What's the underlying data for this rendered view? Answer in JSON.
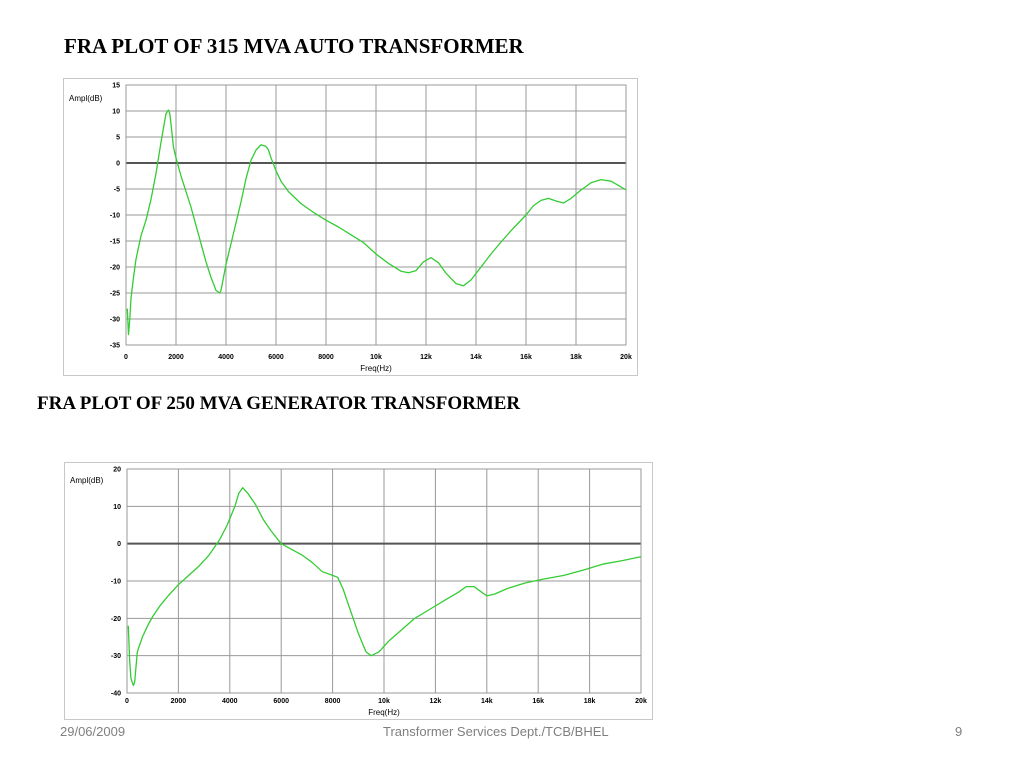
{
  "slide": {
    "title_1": "FRA PLOT OF 315 MVA AUTO TRANSFORMER",
    "title_2": "FRA PLOT OF 250 MVA GENERATOR TRANSFORMER",
    "footer_date": "29/06/2009",
    "footer_center": "Transformer Services Dept./TCB/BHEL",
    "footer_page": "9"
  },
  "colors": {
    "trace": "#33cc33",
    "grid": "#999999",
    "zero_line": "#555555",
    "text": "#000000"
  },
  "chart_data": [
    {
      "type": "line",
      "title": "FRA PLOT OF 315 MVA AUTO TRANSFORMER",
      "xlabel": "Freq(Hz)",
      "ylabel": "Ampl(dB)",
      "xlim": [
        0,
        20000
      ],
      "ylim": [
        -35,
        15
      ],
      "x_ticks": [
        0,
        2000,
        4000,
        6000,
        8000,
        10000,
        12000,
        14000,
        16000,
        18000,
        20000
      ],
      "x_tick_labels": [
        "0",
        "2000",
        "4000",
        "6000",
        "8000",
        "10k",
        "12k",
        "14k",
        "16k",
        "18k",
        "20k"
      ],
      "y_ticks": [
        15,
        10,
        5,
        0,
        -5,
        -10,
        -15,
        -20,
        -25,
        -30,
        -35
      ],
      "y_tick_labels": [
        "15",
        "10",
        "5",
        "0",
        "-5",
        "-10",
        "-15",
        "-20",
        "-25",
        "-30",
        "-35"
      ],
      "grid": true,
      "series": [
        {
          "x": [
            50,
            100,
            150,
            200,
            300,
            400,
            600,
            800,
            1000,
            1200,
            1400,
            1600,
            1700,
            1750,
            1800,
            1900,
            2000,
            2200,
            2400,
            2600,
            2800,
            3000,
            3200,
            3400,
            3600,
            3750,
            3800,
            3900,
            4000,
            4200,
            4400,
            4600,
            4800,
            5000,
            5200,
            5400,
            5600,
            5700,
            5800,
            6000,
            6200,
            6500,
            7000,
            7500,
            8000,
            8500,
            9000,
            9500,
            10000,
            10500,
            11000,
            11300,
            11600,
            11900,
            12200,
            12500,
            12800,
            13200,
            13500,
            13800,
            14200,
            14600,
            15000,
            15500,
            16000,
            16300,
            16600,
            16900,
            17200,
            17500,
            17800,
            18200,
            18600,
            19000,
            19400,
            19700,
            20000
          ],
          "y": [
            -28,
            -33,
            -30,
            -26,
            -22,
            -18.5,
            -14,
            -11,
            -7,
            -2,
            4,
            9.5,
            10.2,
            9.5,
            7.5,
            3,
            1,
            -2.5,
            -5.5,
            -8.5,
            -12,
            -15.5,
            -19,
            -22,
            -24.5,
            -25,
            -24.5,
            -22,
            -19.5,
            -15.5,
            -11.5,
            -7.5,
            -3,
            0.5,
            2.5,
            3.5,
            3.2,
            2.5,
            1,
            -1.5,
            -3.5,
            -5.5,
            -7.8,
            -9.5,
            -11,
            -12.3,
            -13.8,
            -15.3,
            -17.5,
            -19.3,
            -20.8,
            -21.1,
            -20.7,
            -19,
            -18.2,
            -19.2,
            -21.2,
            -23.2,
            -23.6,
            -22.5,
            -20,
            -17.5,
            -15.2,
            -12.5,
            -10,
            -8.2,
            -7.2,
            -6.8,
            -7.3,
            -7.7,
            -6.8,
            -5.2,
            -3.8,
            -3.2,
            -3.5,
            -4.3,
            -5.2
          ]
        }
      ]
    },
    {
      "type": "line",
      "title": "FRA PLOT OF 250 MVA GENERATOR TRANSFORMER",
      "xlabel": "Freq(Hz)",
      "ylabel": "Ampl(dB)",
      "xlim": [
        0,
        20000
      ],
      "ylim": [
        -40,
        20
      ],
      "x_ticks": [
        0,
        2000,
        4000,
        6000,
        8000,
        10000,
        12000,
        14000,
        16000,
        18000,
        20000
      ],
      "x_tick_labels": [
        "0",
        "2000",
        "4000",
        "6000",
        "8000",
        "10k",
        "12k",
        "14k",
        "16k",
        "18k",
        "20k"
      ],
      "y_ticks": [
        20,
        10,
        0,
        -10,
        -20,
        -30,
        -40
      ],
      "y_tick_labels": [
        "20",
        "10",
        "0",
        "-10",
        "-20",
        "-30",
        "-40"
      ],
      "grid": true,
      "series": [
        {
          "x": [
            50,
            100,
            150,
            200,
            250,
            300,
            350,
            400,
            500,
            600,
            800,
            1000,
            1300,
            1600,
            2000,
            2400,
            2800,
            3200,
            3600,
            3900,
            4200,
            4350,
            4500,
            4700,
            5000,
            5300,
            5600,
            6000,
            6400,
            6800,
            7200,
            7600,
            8000,
            8200,
            8400,
            8700,
            9000,
            9300,
            9500,
            9800,
            10200,
            10700,
            11200,
            11800,
            12400,
            12900,
            13200,
            13500,
            13800,
            14000,
            14300,
            14800,
            15500,
            16200,
            17000,
            17800,
            18500,
            19300,
            20000
          ],
          "y": [
            -22,
            -31,
            -36,
            -37,
            -38,
            -37,
            -33,
            -29,
            -27,
            -25,
            -22,
            -19.5,
            -16.5,
            -14,
            -11,
            -8.5,
            -6,
            -3,
            1,
            5,
            10,
            13.5,
            15,
            13.5,
            10.5,
            6.5,
            3.5,
            0,
            -1.5,
            -3,
            -5,
            -7.5,
            -8.5,
            -9,
            -12,
            -18,
            -24,
            -29,
            -30,
            -29,
            -26,
            -23,
            -20,
            -17.5,
            -15,
            -13,
            -11.5,
            -11.5,
            -13,
            -14,
            -13.5,
            -12,
            -10.5,
            -9.5,
            -8.5,
            -7,
            -5.5,
            -4.5,
            -3.5
          ]
        }
      ]
    }
  ]
}
